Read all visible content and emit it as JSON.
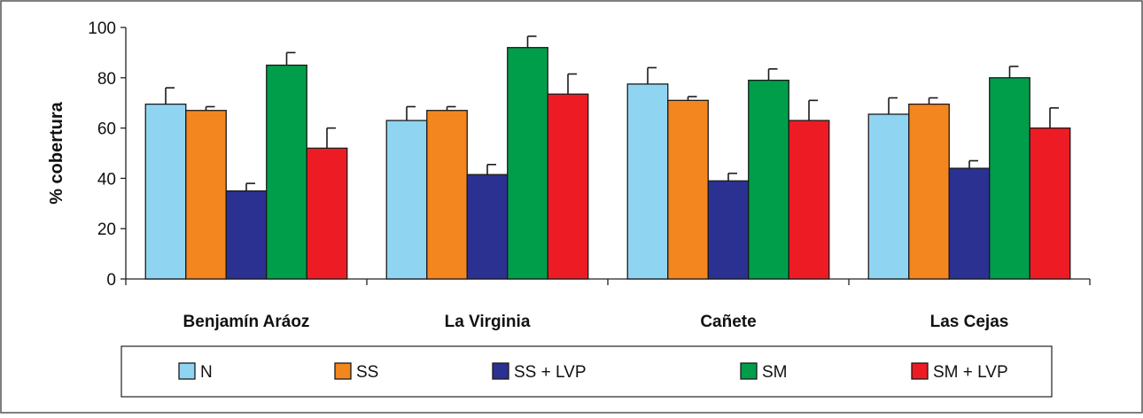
{
  "chart_data": {
    "type": "bar",
    "title": "",
    "xlabel": "",
    "ylabel": "% cobertura",
    "ylim": [
      0,
      100
    ],
    "yticks": [
      "0",
      "20",
      "40",
      "60",
      "80",
      "100"
    ],
    "grid": false,
    "legend_position": "bottom",
    "categories": [
      "Benjamín Aráoz",
      "La Virginia",
      "Cañete",
      "Las Cejas"
    ],
    "series": [
      {
        "name": "N",
        "color": "#8fd5f2",
        "values": [
          69.5,
          63,
          77.5,
          65.5
        ],
        "errors": [
          6.5,
          5.5,
          6.5,
          6.5
        ]
      },
      {
        "name": "SS",
        "color": "#f3861f",
        "values": [
          67,
          67,
          71,
          69.5
        ],
        "errors": [
          1.5,
          1.5,
          1.5,
          2.5
        ]
      },
      {
        "name": "SS + LVP",
        "color": "#2b3191",
        "values": [
          35,
          41.5,
          39,
          44
        ],
        "errors": [
          3,
          4,
          3,
          3
        ]
      },
      {
        "name": "SM",
        "color": "#009e4b",
        "values": [
          85,
          92,
          79,
          80
        ],
        "errors": [
          5,
          4.5,
          4.5,
          4.5
        ]
      },
      {
        "name": "SM + LVP",
        "color": "#ed1c24",
        "values": [
          52,
          73.5,
          63,
          60
        ],
        "errors": [
          8,
          8,
          8,
          8
        ]
      }
    ]
  }
}
